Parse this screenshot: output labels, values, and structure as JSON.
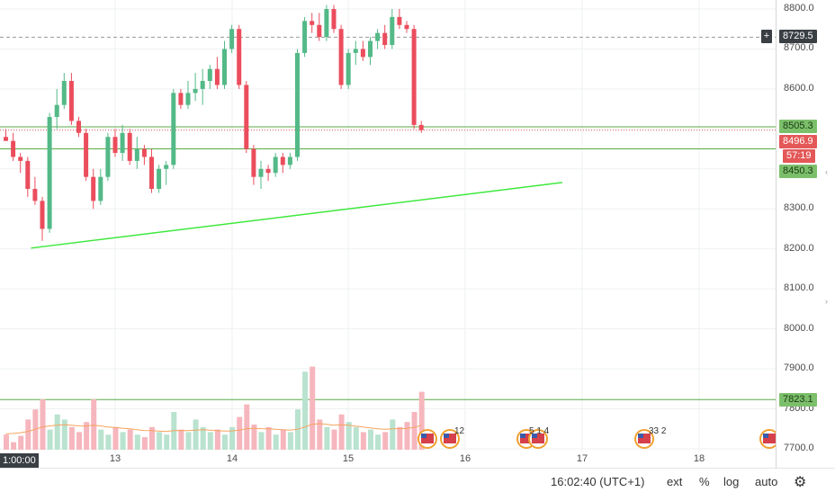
{
  "price_axis": {
    "ticks": [
      "8800.0",
      "8700.0",
      "8600.0",
      "8500.0",
      "8300.0",
      "8200.0",
      "8100.0",
      "8000.0",
      "7900.0",
      "7800.0",
      "7700.0"
    ],
    "tick_values": [
      8800,
      8700,
      8600,
      8500,
      8300,
      8200,
      8100,
      8000,
      7900,
      7800,
      7700
    ]
  },
  "time_axis": {
    "first_label": "1:00:00",
    "labels": [
      "13",
      "14",
      "15",
      "16",
      "17",
      "18"
    ]
  },
  "tags": {
    "crosshair_plus": "+",
    "crosshair": "8729.5",
    "level_upper": "8505.3",
    "last_price": "8496.9",
    "countdown": "57:19",
    "level_lower": "8450.3",
    "level_bottom": "7823.1"
  },
  "colors": {
    "up": "#53b987",
    "down": "#eb4d5c",
    "up_vol": "#b9e2cf",
    "down_vol": "#f6b6bd",
    "trendline": "#3ee83e",
    "hline": "#5aab46",
    "ma": "#f7a35c"
  },
  "events": {
    "group1_count": "12",
    "group2_count": "5 1 4",
    "group3_count": "33 2"
  },
  "bottom_bar": {
    "time": "16:02:40 (UTC+1)",
    "ext": "ext",
    "percent": "%",
    "log": "log",
    "auto": "auto",
    "gear_icon": "gear-icon"
  },
  "chart_data": {
    "type": "candlestick",
    "y_range": [
      7700,
      8830
    ],
    "candles": [
      [
        8480,
        8500,
        8470,
        8470
      ],
      [
        8470,
        8490,
        8420,
        8430
      ],
      [
        8430,
        8440,
        8390,
        8420
      ],
      [
        8420,
        8430,
        8330,
        8350
      ],
      [
        8350,
        8380,
        8310,
        8320
      ],
      [
        8320,
        8330,
        8220,
        8250
      ],
      [
        8250,
        8540,
        8240,
        8530
      ],
      [
        8530,
        8600,
        8500,
        8560
      ],
      [
        8560,
        8640,
        8550,
        8620
      ],
      [
        8620,
        8640,
        8510,
        8520
      ],
      [
        8520,
        8530,
        8480,
        8490
      ],
      [
        8490,
        8500,
        8370,
        8380
      ],
      [
        8380,
        8400,
        8300,
        8320
      ],
      [
        8320,
        8400,
        8310,
        8380
      ],
      [
        8380,
        8490,
        8370,
        8480
      ],
      [
        8480,
        8500,
        8430,
        8440
      ],
      [
        8440,
        8510,
        8420,
        8490
      ],
      [
        8490,
        8500,
        8410,
        8420
      ],
      [
        8420,
        8480,
        8400,
        8450
      ],
      [
        8450,
        8460,
        8410,
        8430
      ],
      [
        8430,
        8450,
        8340,
        8350
      ],
      [
        8350,
        8410,
        8340,
        8400
      ],
      [
        8400,
        8420,
        8360,
        8410
      ],
      [
        8410,
        8600,
        8400,
        8590
      ],
      [
        8590,
        8600,
        8550,
        8560
      ],
      [
        8560,
        8620,
        8550,
        8590
      ],
      [
        8590,
        8640,
        8570,
        8600
      ],
      [
        8600,
        8650,
        8560,
        8620
      ],
      [
        8620,
        8660,
        8600,
        8650
      ],
      [
        8650,
        8680,
        8600,
        8610
      ],
      [
        8610,
        8720,
        8600,
        8700
      ],
      [
        8700,
        8760,
        8690,
        8750
      ],
      [
        8750,
        8760,
        8600,
        8610
      ],
      [
        8610,
        8620,
        8440,
        8450
      ],
      [
        8450,
        8460,
        8360,
        8380
      ],
      [
        8380,
        8420,
        8350,
        8400
      ],
      [
        8400,
        8410,
        8370,
        8390
      ],
      [
        8390,
        8440,
        8380,
        8430
      ],
      [
        8430,
        8440,
        8390,
        8410
      ],
      [
        8410,
        8440,
        8400,
        8430
      ],
      [
        8430,
        8700,
        8420,
        8690
      ],
      [
        8690,
        8780,
        8680,
        8770
      ],
      [
        8770,
        8790,
        8740,
        8760
      ],
      [
        8760,
        8790,
        8720,
        8730
      ],
      [
        8730,
        8810,
        8720,
        8800
      ],
      [
        8800,
        8810,
        8740,
        8750
      ],
      [
        8750,
        8760,
        8600,
        8610
      ],
      [
        8610,
        8700,
        8600,
        8690
      ],
      [
        8690,
        8720,
        8660,
        8700
      ],
      [
        8700,
        8720,
        8670,
        8680
      ],
      [
        8680,
        8730,
        8660,
        8720
      ],
      [
        8720,
        8750,
        8700,
        8740
      ],
      [
        8740,
        8760,
        8700,
        8710
      ],
      [
        8710,
        8800,
        8700,
        8780
      ],
      [
        8780,
        8800,
        8750,
        8760
      ],
      [
        8760,
        8770,
        8740,
        8750
      ],
      [
        8750,
        8760,
        8500,
        8510
      ],
      [
        8510,
        8520,
        8490,
        8497
      ]
    ],
    "volumes": [
      60,
      30,
      55,
      120,
      160,
      200,
      80,
      140,
      120,
      90,
      70,
      110,
      200,
      80,
      60,
      90,
      70,
      80,
      60,
      50,
      90,
      70,
      60,
      150,
      80,
      70,
      120,
      90,
      70,
      80,
      60,
      90,
      130,
      180,
      100,
      70,
      90,
      60,
      80,
      70,
      160,
      310,
      330,
      120,
      90,
      80,
      140,
      110,
      90,
      70,
      80,
      60,
      70,
      120,
      90,
      110,
      150,
      230
    ],
    "ma": [
      70,
      72,
      75,
      80,
      90,
      100,
      105,
      108,
      110,
      108,
      105,
      104,
      108,
      105,
      100,
      98,
      95,
      92,
      88,
      85,
      84,
      82,
      80,
      84,
      85,
      84,
      86,
      88,
      86,
      84,
      82,
      83,
      86,
      92,
      95,
      93,
      92,
      90,
      88,
      86,
      90,
      100,
      112,
      115,
      112,
      108,
      110,
      108,
      104,
      100,
      96,
      92,
      90,
      92,
      93,
      94,
      98,
      108
    ],
    "trendline": [
      {
        "x_frac": 0.04,
        "price": 8202
      },
      {
        "x_frac": 0.725,
        "price": 8366
      }
    ]
  }
}
